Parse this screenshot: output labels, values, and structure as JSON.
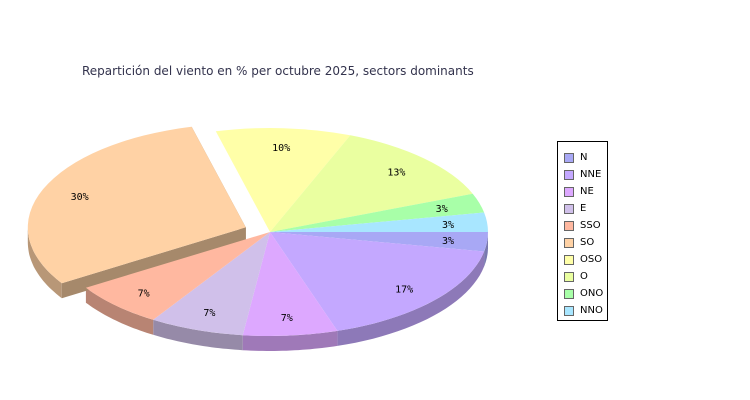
{
  "title": "Repartición del viento en % per octubre 2025, sectors dominants",
  "chart_data": {
    "type": "pie",
    "title": "Repartición del viento en % per octubre 2025, sectors dominants",
    "legend_position": "right",
    "slices": [
      {
        "name": "N",
        "value": 3,
        "label": "3%",
        "color": "#a8a8f5"
      },
      {
        "name": "NNE",
        "value": 17,
        "label": "17%",
        "color": "#c4a8ff"
      },
      {
        "name": "NE",
        "value": 7,
        "label": "7%",
        "color": "#dda8ff"
      },
      {
        "name": "E",
        "value": 7,
        "label": "7%",
        "color": "#d0c0ea"
      },
      {
        "name": "SSO",
        "value": 7,
        "label": "7%",
        "color": "#ffb8a0"
      },
      {
        "name": "SO",
        "value": 30,
        "label": "30%",
        "color": "#ffd2a5"
      },
      {
        "name": "OSO",
        "value": 10,
        "label": "10%",
        "color": "#ffffa8"
      },
      {
        "name": "O",
        "value": 13,
        "label": "13%",
        "color": "#eaffa0"
      },
      {
        "name": "ONO",
        "value": 3,
        "label": "3%",
        "color": "#a8ffa8"
      },
      {
        "name": "NNO",
        "value": 3,
        "label": "3%",
        "color": "#a8e6ff"
      }
    ]
  }
}
